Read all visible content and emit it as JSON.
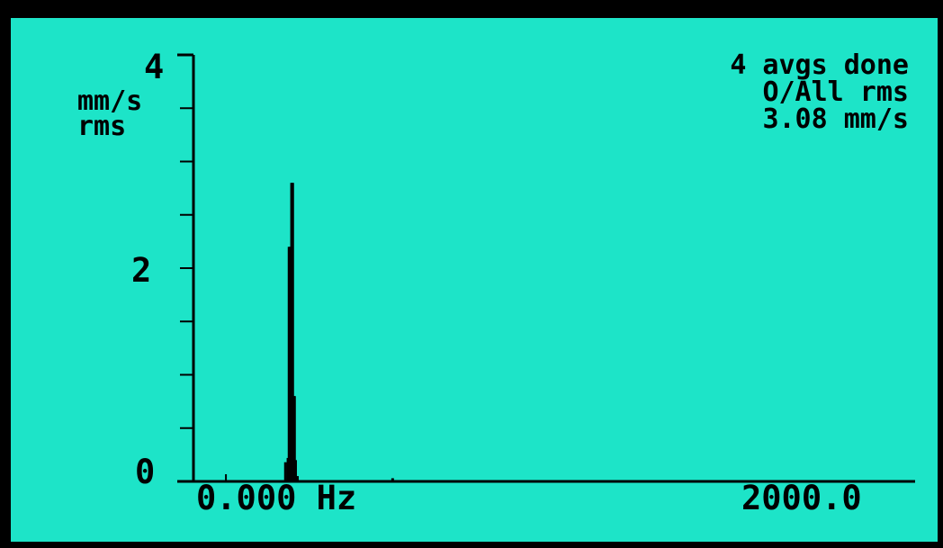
{
  "chart_data": {
    "type": "bar",
    "xlabel": "",
    "ylabel_unit": "mm/s",
    "ylabel_type": "rms",
    "xlim": [
      0,
      2000
    ],
    "x_start_label": "0.000 Hz",
    "x_end_label": "2000.0",
    "ylim": [
      0,
      4
    ],
    "y_ticks": [
      "0",
      "2",
      "4"
    ],
    "x": [
      255,
      262,
      265,
      268,
      272,
      275,
      278,
      280,
      283,
      288,
      552
    ],
    "values": [
      0.18,
      0.22,
      2.2,
      2.2,
      2.8,
      2.8,
      0.8,
      0.8,
      0.2,
      0.05,
      0.03
    ]
  },
  "status": {
    "line1": "4 avgs done",
    "line2": "O/All rms",
    "line3": "3.08 mm/s"
  },
  "colors": {
    "background": "#1de4c8",
    "foreground": "#000000",
    "bezel": "#000000"
  }
}
